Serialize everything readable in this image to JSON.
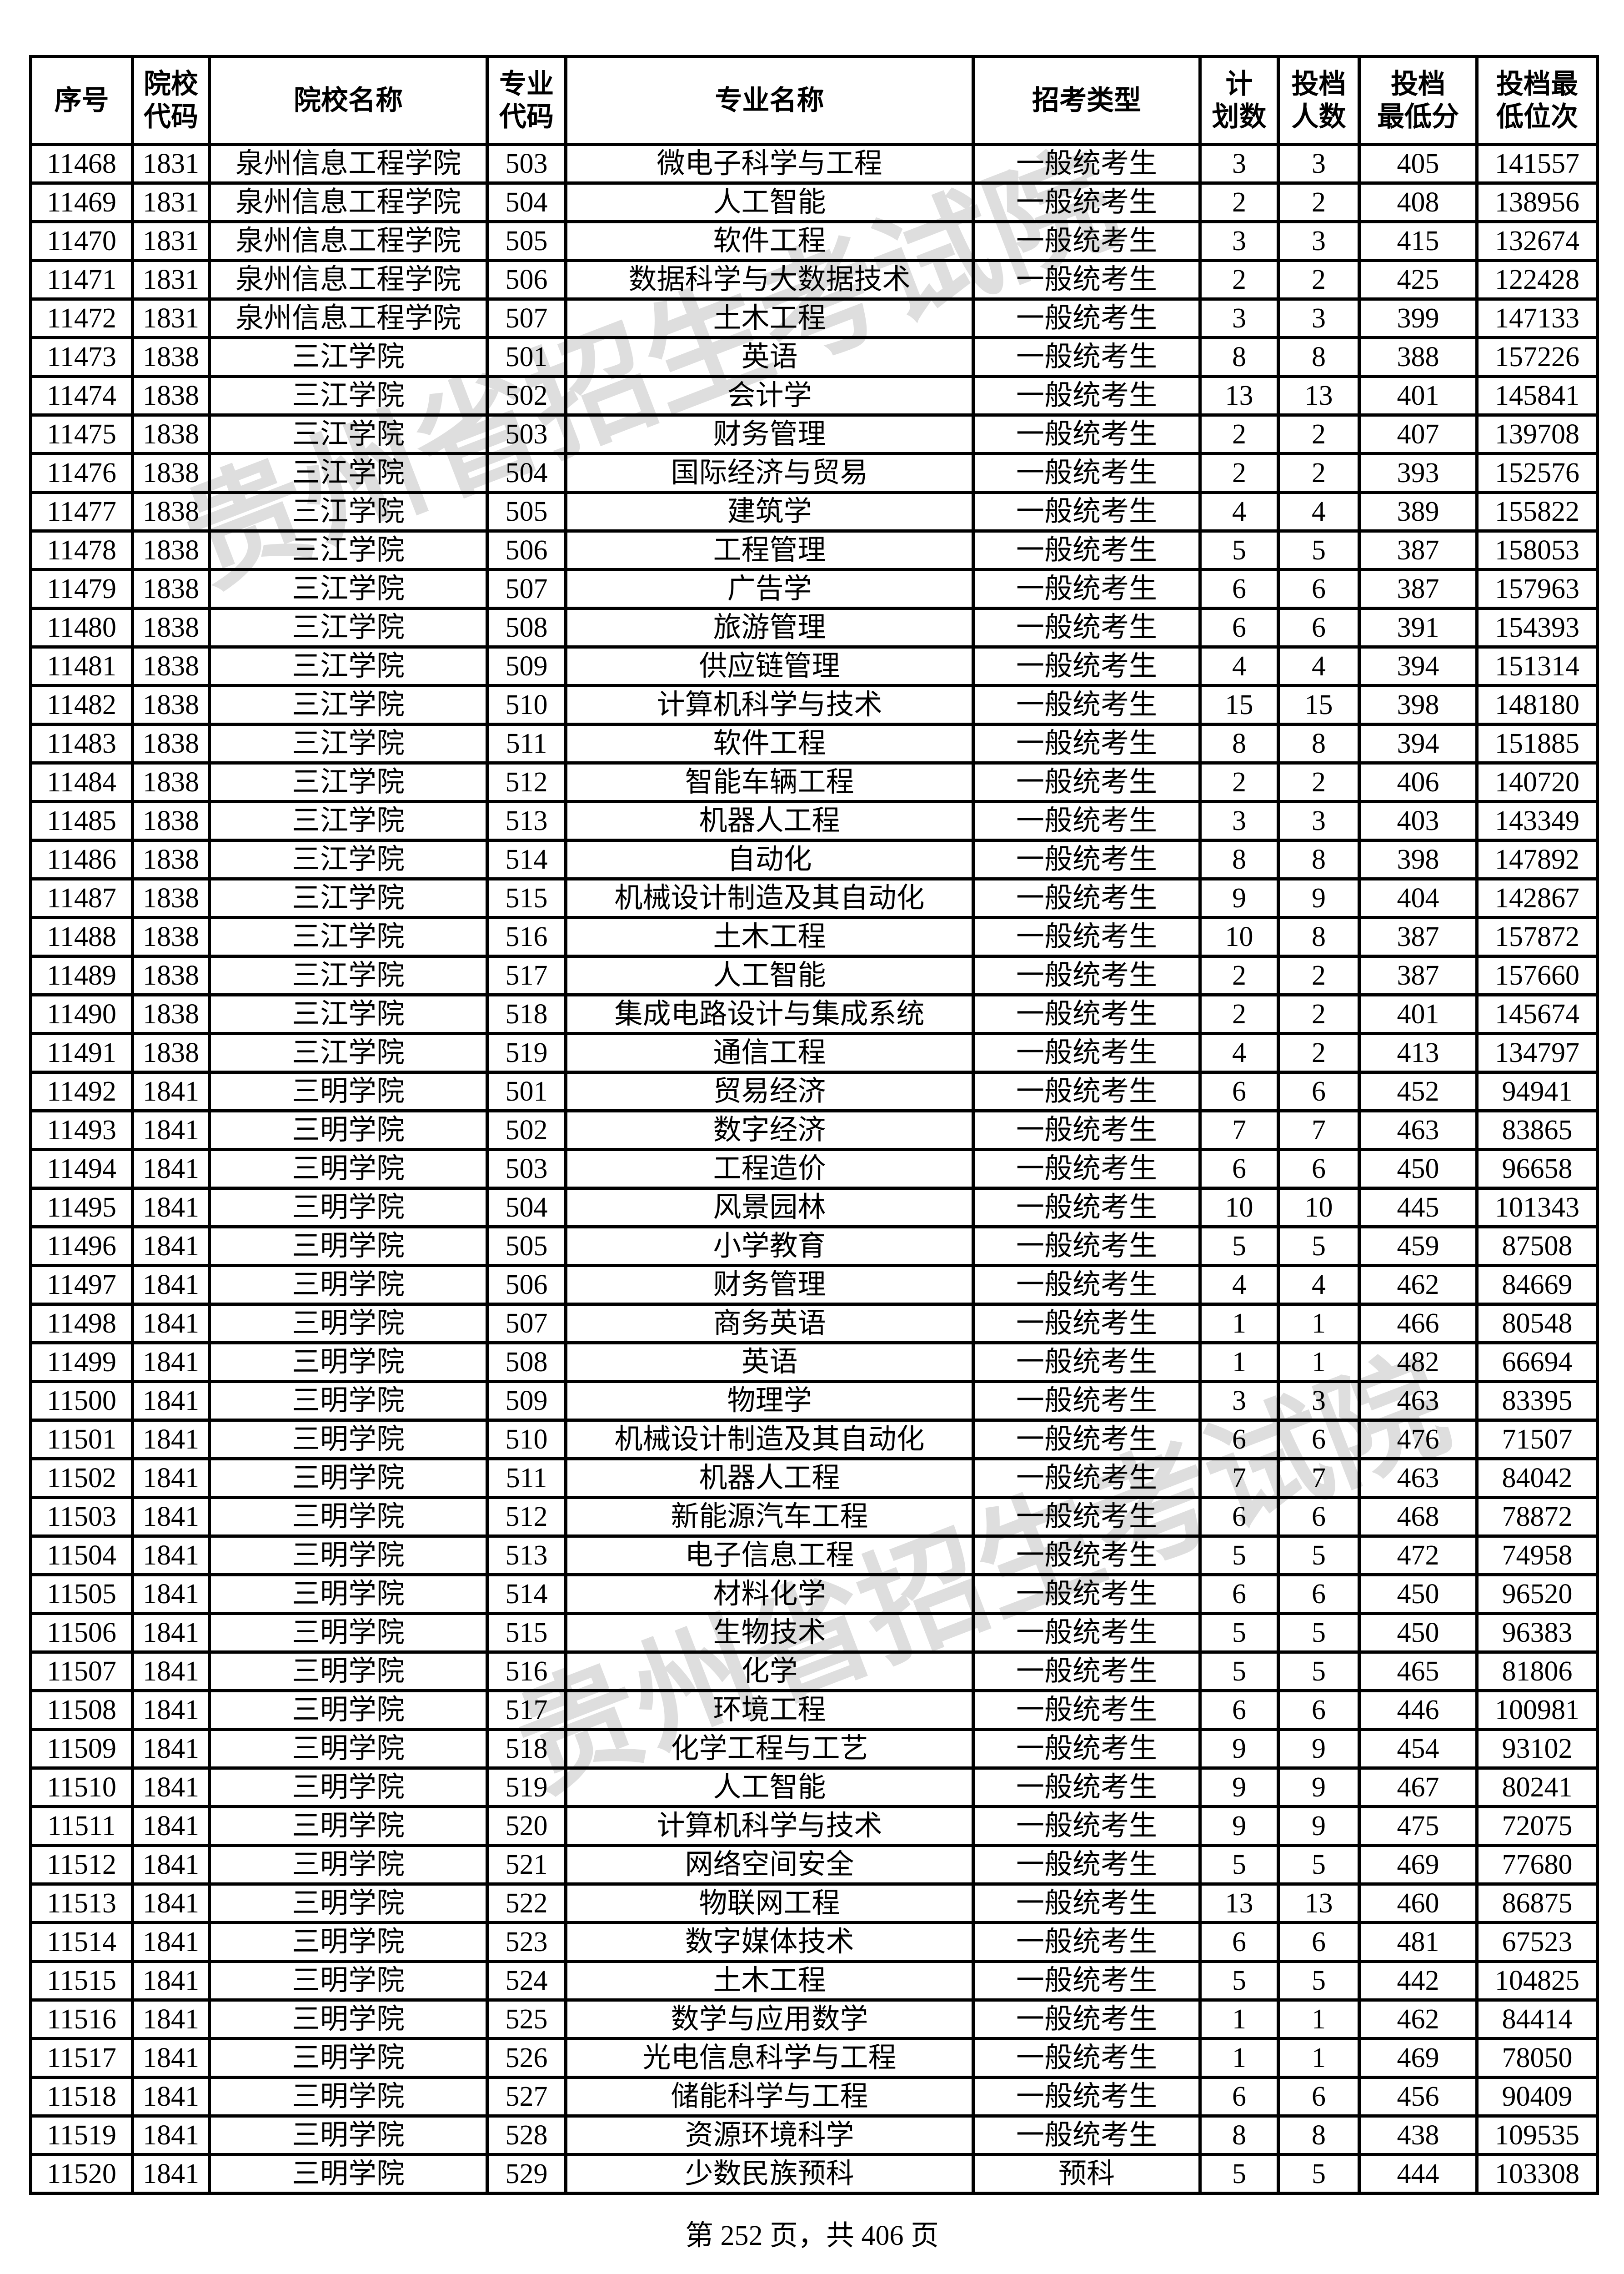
{
  "headers": [
    "序号",
    "院校\n代码",
    "院校名称",
    "专业\n代码",
    "专业名称",
    "招考类型",
    "计\n划数",
    "投档\n人数",
    "投档\n最低分",
    "投档最\n低位次"
  ],
  "watermark": "贵州省招生考试院",
  "rows": [
    [
      "11468",
      "1831",
      "泉州信息工程学院",
      "503",
      "微电子科学与工程",
      "一般统考生",
      "3",
      "3",
      "405",
      "141557"
    ],
    [
      "11469",
      "1831",
      "泉州信息工程学院",
      "504",
      "人工智能",
      "一般统考生",
      "2",
      "2",
      "408",
      "138956"
    ],
    [
      "11470",
      "1831",
      "泉州信息工程学院",
      "505",
      "软件工程",
      "一般统考生",
      "3",
      "3",
      "415",
      "132674"
    ],
    [
      "11471",
      "1831",
      "泉州信息工程学院",
      "506",
      "数据科学与大数据技术",
      "一般统考生",
      "2",
      "2",
      "425",
      "122428"
    ],
    [
      "11472",
      "1831",
      "泉州信息工程学院",
      "507",
      "土木工程",
      "一般统考生",
      "3",
      "3",
      "399",
      "147133"
    ],
    [
      "11473",
      "1838",
      "三江学院",
      "501",
      "英语",
      "一般统考生",
      "8",
      "8",
      "388",
      "157226"
    ],
    [
      "11474",
      "1838",
      "三江学院",
      "502",
      "会计学",
      "一般统考生",
      "13",
      "13",
      "401",
      "145841"
    ],
    [
      "11475",
      "1838",
      "三江学院",
      "503",
      "财务管理",
      "一般统考生",
      "2",
      "2",
      "407",
      "139708"
    ],
    [
      "11476",
      "1838",
      "三江学院",
      "504",
      "国际经济与贸易",
      "一般统考生",
      "2",
      "2",
      "393",
      "152576"
    ],
    [
      "11477",
      "1838",
      "三江学院",
      "505",
      "建筑学",
      "一般统考生",
      "4",
      "4",
      "389",
      "155822"
    ],
    [
      "11478",
      "1838",
      "三江学院",
      "506",
      "工程管理",
      "一般统考生",
      "5",
      "5",
      "387",
      "158053"
    ],
    [
      "11479",
      "1838",
      "三江学院",
      "507",
      "广告学",
      "一般统考生",
      "6",
      "6",
      "387",
      "157963"
    ],
    [
      "11480",
      "1838",
      "三江学院",
      "508",
      "旅游管理",
      "一般统考生",
      "6",
      "6",
      "391",
      "154393"
    ],
    [
      "11481",
      "1838",
      "三江学院",
      "509",
      "供应链管理",
      "一般统考生",
      "4",
      "4",
      "394",
      "151314"
    ],
    [
      "11482",
      "1838",
      "三江学院",
      "510",
      "计算机科学与技术",
      "一般统考生",
      "15",
      "15",
      "398",
      "148180"
    ],
    [
      "11483",
      "1838",
      "三江学院",
      "511",
      "软件工程",
      "一般统考生",
      "8",
      "8",
      "394",
      "151885"
    ],
    [
      "11484",
      "1838",
      "三江学院",
      "512",
      "智能车辆工程",
      "一般统考生",
      "2",
      "2",
      "406",
      "140720"
    ],
    [
      "11485",
      "1838",
      "三江学院",
      "513",
      "机器人工程",
      "一般统考生",
      "3",
      "3",
      "403",
      "143349"
    ],
    [
      "11486",
      "1838",
      "三江学院",
      "514",
      "自动化",
      "一般统考生",
      "8",
      "8",
      "398",
      "147892"
    ],
    [
      "11487",
      "1838",
      "三江学院",
      "515",
      "机械设计制造及其自动化",
      "一般统考生",
      "9",
      "9",
      "404",
      "142867"
    ],
    [
      "11488",
      "1838",
      "三江学院",
      "516",
      "土木工程",
      "一般统考生",
      "10",
      "8",
      "387",
      "157872"
    ],
    [
      "11489",
      "1838",
      "三江学院",
      "517",
      "人工智能",
      "一般统考生",
      "2",
      "2",
      "387",
      "157660"
    ],
    [
      "11490",
      "1838",
      "三江学院",
      "518",
      "集成电路设计与集成系统",
      "一般统考生",
      "2",
      "2",
      "401",
      "145674"
    ],
    [
      "11491",
      "1838",
      "三江学院",
      "519",
      "通信工程",
      "一般统考生",
      "4",
      "2",
      "413",
      "134797"
    ],
    [
      "11492",
      "1841",
      "三明学院",
      "501",
      "贸易经济",
      "一般统考生",
      "6",
      "6",
      "452",
      "94941"
    ],
    [
      "11493",
      "1841",
      "三明学院",
      "502",
      "数字经济",
      "一般统考生",
      "7",
      "7",
      "463",
      "83865"
    ],
    [
      "11494",
      "1841",
      "三明学院",
      "503",
      "工程造价",
      "一般统考生",
      "6",
      "6",
      "450",
      "96658"
    ],
    [
      "11495",
      "1841",
      "三明学院",
      "504",
      "风景园林",
      "一般统考生",
      "10",
      "10",
      "445",
      "101343"
    ],
    [
      "11496",
      "1841",
      "三明学院",
      "505",
      "小学教育",
      "一般统考生",
      "5",
      "5",
      "459",
      "87508"
    ],
    [
      "11497",
      "1841",
      "三明学院",
      "506",
      "财务管理",
      "一般统考生",
      "4",
      "4",
      "462",
      "84669"
    ],
    [
      "11498",
      "1841",
      "三明学院",
      "507",
      "商务英语",
      "一般统考生",
      "1",
      "1",
      "466",
      "80548"
    ],
    [
      "11499",
      "1841",
      "三明学院",
      "508",
      "英语",
      "一般统考生",
      "1",
      "1",
      "482",
      "66694"
    ],
    [
      "11500",
      "1841",
      "三明学院",
      "509",
      "物理学",
      "一般统考生",
      "3",
      "3",
      "463",
      "83395"
    ],
    [
      "11501",
      "1841",
      "三明学院",
      "510",
      "机械设计制造及其自动化",
      "一般统考生",
      "6",
      "6",
      "476",
      "71507"
    ],
    [
      "11502",
      "1841",
      "三明学院",
      "511",
      "机器人工程",
      "一般统考生",
      "7",
      "7",
      "463",
      "84042"
    ],
    [
      "11503",
      "1841",
      "三明学院",
      "512",
      "新能源汽车工程",
      "一般统考生",
      "6",
      "6",
      "468",
      "78872"
    ],
    [
      "11504",
      "1841",
      "三明学院",
      "513",
      "电子信息工程",
      "一般统考生",
      "5",
      "5",
      "472",
      "74958"
    ],
    [
      "11505",
      "1841",
      "三明学院",
      "514",
      "材料化学",
      "一般统考生",
      "6",
      "6",
      "450",
      "96520"
    ],
    [
      "11506",
      "1841",
      "三明学院",
      "515",
      "生物技术",
      "一般统考生",
      "5",
      "5",
      "450",
      "96383"
    ],
    [
      "11507",
      "1841",
      "三明学院",
      "516",
      "化学",
      "一般统考生",
      "5",
      "5",
      "465",
      "81806"
    ],
    [
      "11508",
      "1841",
      "三明学院",
      "517",
      "环境工程",
      "一般统考生",
      "6",
      "6",
      "446",
      "100981"
    ],
    [
      "11509",
      "1841",
      "三明学院",
      "518",
      "化学工程与工艺",
      "一般统考生",
      "9",
      "9",
      "454",
      "93102"
    ],
    [
      "11510",
      "1841",
      "三明学院",
      "519",
      "人工智能",
      "一般统考生",
      "9",
      "9",
      "467",
      "80241"
    ],
    [
      "11511",
      "1841",
      "三明学院",
      "520",
      "计算机科学与技术",
      "一般统考生",
      "9",
      "9",
      "475",
      "72075"
    ],
    [
      "11512",
      "1841",
      "三明学院",
      "521",
      "网络空间安全",
      "一般统考生",
      "5",
      "5",
      "469",
      "77680"
    ],
    [
      "11513",
      "1841",
      "三明学院",
      "522",
      "物联网工程",
      "一般统考生",
      "13",
      "13",
      "460",
      "86875"
    ],
    [
      "11514",
      "1841",
      "三明学院",
      "523",
      "数字媒体技术",
      "一般统考生",
      "6",
      "6",
      "481",
      "67523"
    ],
    [
      "11515",
      "1841",
      "三明学院",
      "524",
      "土木工程",
      "一般统考生",
      "5",
      "5",
      "442",
      "104825"
    ],
    [
      "11516",
      "1841",
      "三明学院",
      "525",
      "数学与应用数学",
      "一般统考生",
      "1",
      "1",
      "462",
      "84414"
    ],
    [
      "11517",
      "1841",
      "三明学院",
      "526",
      "光电信息科学与工程",
      "一般统考生",
      "1",
      "1",
      "469",
      "78050"
    ],
    [
      "11518",
      "1841",
      "三明学院",
      "527",
      "储能科学与工程",
      "一般统考生",
      "6",
      "6",
      "456",
      "90409"
    ],
    [
      "11519",
      "1841",
      "三明学院",
      "528",
      "资源环境科学",
      "一般统考生",
      "8",
      "8",
      "438",
      "109535"
    ],
    [
      "11520",
      "1841",
      "三明学院",
      "529",
      "少数民族预科",
      "预科",
      "5",
      "5",
      "444",
      "103308"
    ]
  ],
  "footer": "第 252 页，共 406 页"
}
